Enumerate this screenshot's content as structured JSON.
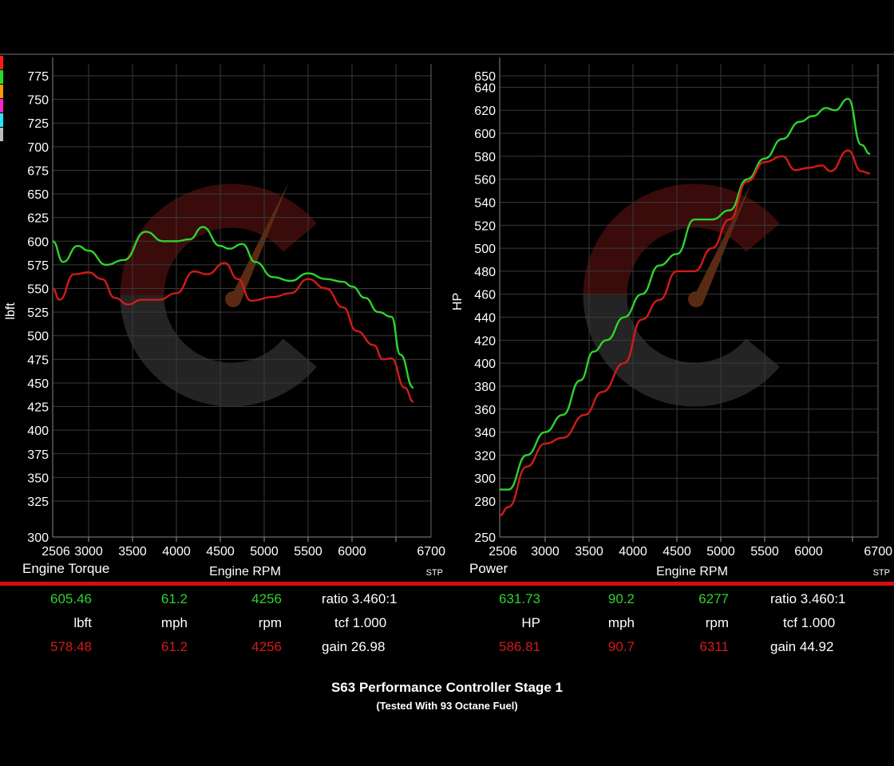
{
  "legend_colors": [
    "#ff1a1a",
    "#22e022",
    "#ff9900",
    "#ff22cc",
    "#22e6ff",
    "#bbbbbb"
  ],
  "series_colors": {
    "run1": "#2dd42d",
    "run2": "#d41a1a"
  },
  "chart_data": [
    {
      "type": "line",
      "title": "Engine Torque",
      "xlabel": "Engine RPM",
      "ylabel": "lbft",
      "corner_label": "STP",
      "xlim": [
        2506,
        6700
      ],
      "x_ticks": [
        "2506",
        "3000",
        "3500",
        "4000",
        "4500",
        "5000",
        "5500",
        "6000",
        "6700"
      ],
      "y_ticks": [
        "300",
        "325",
        "350",
        "375",
        "400",
        "425",
        "450",
        "475",
        "500",
        "525",
        "550",
        "575",
        "600",
        "625",
        "650",
        "675",
        "700",
        "725",
        "750",
        "775"
      ],
      "grid": true,
      "series": [
        {
          "color": "#2dd42d",
          "x": [
            2506,
            2650,
            2850,
            3000,
            3200,
            3400,
            3650,
            3850,
            4000,
            4150,
            4300,
            4500,
            4600,
            4750,
            4900,
            5100,
            5300,
            5500,
            5700,
            5900,
            6000,
            6150,
            6300,
            6450,
            6550,
            6700
          ],
          "y": [
            600,
            578,
            595,
            590,
            575,
            580,
            610,
            600,
            600,
            602,
            615,
            595,
            592,
            597,
            578,
            562,
            558,
            566,
            560,
            557,
            552,
            540,
            525,
            520,
            480,
            445
          ]
        },
        {
          "color": "#d41a1a",
          "x": [
            2506,
            2600,
            2800,
            3000,
            3150,
            3300,
            3450,
            3600,
            3800,
            4000,
            4200,
            4350,
            4550,
            4700,
            4850,
            5100,
            5300,
            5500,
            5700,
            5900,
            6050,
            6250,
            6350,
            6450,
            6600,
            6700
          ],
          "y": [
            550,
            538,
            565,
            567,
            560,
            540,
            533,
            538,
            538,
            545,
            568,
            565,
            577,
            560,
            537,
            541,
            545,
            560,
            550,
            530,
            505,
            490,
            475,
            476,
            445,
            430
          ]
        }
      ]
    },
    {
      "type": "line",
      "title": "Power",
      "xlabel": "Engine RPM",
      "ylabel": "HP",
      "corner_label": "STP",
      "xlim": [
        2506,
        6700
      ],
      "x_ticks": [
        "2506",
        "3000",
        "3500",
        "4000",
        "4500",
        "5000",
        "5500",
        "6000",
        "6700"
      ],
      "y_ticks": [
        "250",
        "280",
        "300",
        "320",
        "340",
        "360",
        "380",
        "400",
        "420",
        "440",
        "460",
        "480",
        "500",
        "520",
        "540",
        "560",
        "580",
        "600",
        "620",
        "640",
        "650"
      ],
      "grid": true,
      "series": [
        {
          "color": "#2dd42d",
          "x": [
            2506,
            2600,
            2800,
            3000,
            3200,
            3400,
            3550,
            3700,
            3900,
            4100,
            4300,
            4500,
            4700,
            4900,
            5100,
            5300,
            5500,
            5700,
            5900,
            6050,
            6200,
            6300,
            6450,
            6600,
            6700
          ],
          "y": [
            290,
            290,
            320,
            340,
            355,
            385,
            410,
            420,
            440,
            460,
            485,
            495,
            525,
            525,
            533,
            560,
            578,
            595,
            610,
            615,
            622,
            620,
            630,
            590,
            582
          ]
        },
        {
          "color": "#d41a1a",
          "x": [
            2506,
            2600,
            2800,
            3000,
            3200,
            3450,
            3650,
            3900,
            4100,
            4300,
            4500,
            4700,
            4900,
            5100,
            5300,
            5500,
            5700,
            5850,
            6000,
            6150,
            6250,
            6450,
            6600,
            6700
          ],
          "y": [
            268,
            275,
            310,
            330,
            335,
            355,
            375,
            400,
            438,
            455,
            480,
            480,
            500,
            525,
            558,
            575,
            580,
            568,
            570,
            572,
            567,
            585,
            567,
            565
          ]
        }
      ]
    }
  ],
  "stats": {
    "left": {
      "v1": "605.46",
      "mph1": "61.2",
      "rpm1": "4256",
      "ratio": "ratio 3.460:1",
      "unit": "lbft",
      "mph_unit": "mph",
      "rpm_unit": "rpm",
      "tcf": "tcf 1.000",
      "v2": "578.48",
      "mph2": "61.2",
      "rpm2": "4256",
      "gain": "gain 26.98"
    },
    "right": {
      "v1": "631.73",
      "mph1": "90.2",
      "rpm1": "6277",
      "ratio": "ratio 3.460:1",
      "unit": "HP",
      "mph_unit": "mph",
      "rpm_unit": "rpm",
      "tcf": "tcf 1.000",
      "v2": "586.81",
      "mph2": "90.7",
      "rpm2": "6311",
      "gain": "gain 44.92"
    }
  },
  "footer": {
    "title": "S63 Performance Controller Stage 1",
    "subtitle": "(Tested With 93 Octane Fuel)"
  }
}
